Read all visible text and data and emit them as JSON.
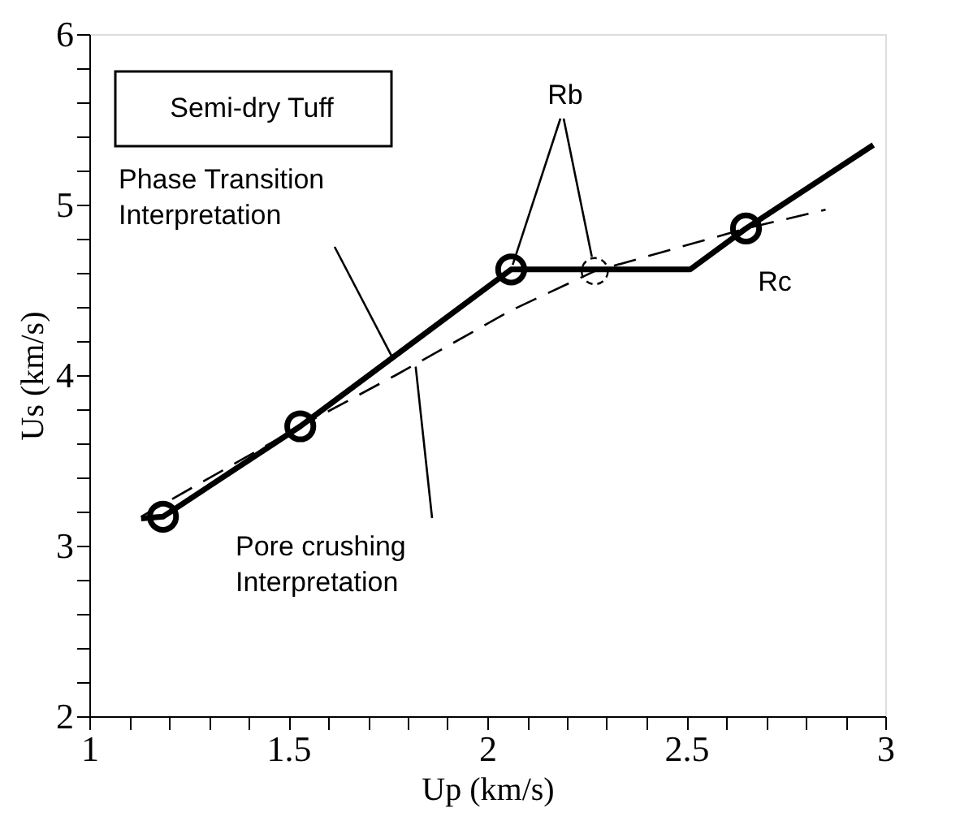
{
  "chart_data": {
    "type": "line",
    "xlabel": "Up (km/s)",
    "ylabel": "Us (km/s)",
    "xlim": [
      1,
      3
    ],
    "xticks": [
      1,
      {
        "value": 1.1,
        "label": null
      },
      {
        "value": 1.2,
        "label": null
      },
      {
        "value": 1.3,
        "label": null
      },
      {
        "value": 1.4,
        "label": null
      },
      1.5,
      {
        "value": 1.6,
        "label": null
      },
      {
        "value": 1.7,
        "label": null
      },
      {
        "value": 1.8,
        "label": null
      },
      {
        "value": 1.9,
        "label": null
      },
      2,
      {
        "value": 2.1,
        "label": null
      },
      {
        "value": 2.2,
        "label": null
      },
      {
        "value": 2.3,
        "label": null
      },
      {
        "value": 2.4,
        "label": null
      },
      2.5,
      {
        "value": 2.6,
        "label": null
      },
      {
        "value": 2.7,
        "label": null
      },
      {
        "value": 2.8,
        "label": null
      },
      {
        "value": 2.9,
        "label": null
      },
      3
    ],
    "ylim": [
      2,
      6
    ],
    "yticks": [
      2,
      {
        "value": 2.2,
        "label": null
      },
      {
        "value": 2.4,
        "label": null
      },
      {
        "value": 2.6,
        "label": null
      },
      {
        "value": 2.8,
        "label": null
      },
      3,
      {
        "value": 3.2,
        "label": null
      },
      {
        "value": 3.4,
        "label": null
      },
      {
        "value": 3.6,
        "label": null
      },
      {
        "value": 3.8,
        "label": null
      },
      4,
      {
        "value": 4.2,
        "label": null
      },
      {
        "value": 4.4,
        "label": null
      },
      {
        "value": 4.6,
        "label": null
      },
      {
        "value": 4.8,
        "label": null
      },
      5,
      {
        "value": 5.2,
        "label": null
      },
      {
        "value": 5.4,
        "label": null
      },
      {
        "value": 5.6,
        "label": null
      },
      {
        "value": 5.8,
        "label": null
      },
      6
    ],
    "grid": false,
    "series": [
      {
        "line_style": "solid",
        "marker": "none",
        "color": "#000000",
        "x": [
          1.13,
          1.185,
          1.53,
          2.06,
          2.51,
          2.65,
          2.97
        ],
        "values": [
          3.16,
          3.17,
          3.7,
          4.62,
          4.62,
          4.86,
          5.35
        ]
      },
      {
        "line_style": "dashed",
        "marker": "none",
        "color": "#000000",
        "x": [
          1.13,
          1.53,
          1.77,
          2.06,
          2.27,
          2.65,
          2.85
        ],
        "values": [
          3.17,
          3.7,
          4.0,
          4.38,
          4.61,
          4.86,
          4.97
        ]
      },
      {
        "type": "scatter",
        "marker": "circle",
        "line_style": "solid",
        "color": "#000000",
        "x": [
          1.185,
          1.53,
          2.06,
          2.65
        ],
        "values": [
          3.17,
          3.7,
          4.62,
          4.86
        ]
      },
      {
        "type": "scatter",
        "marker": "circle",
        "line_style": "dashed",
        "color": "#000000",
        "x": [
          2.27
        ],
        "values": [
          4.61
        ]
      }
    ],
    "annotations": [
      "Semi-dry Tuff",
      {
        "text": "Phase Transition\nInterpretation",
        "x": 1.76,
        "y": 4.11
      },
      {
        "text": "Pore crushing\nInterpretation",
        "x": 1.82,
        "y": 4.05
      },
      {
        "text": "Rb",
        "x": 2.06,
        "y": 4.62
      },
      "Rc"
    ]
  }
}
